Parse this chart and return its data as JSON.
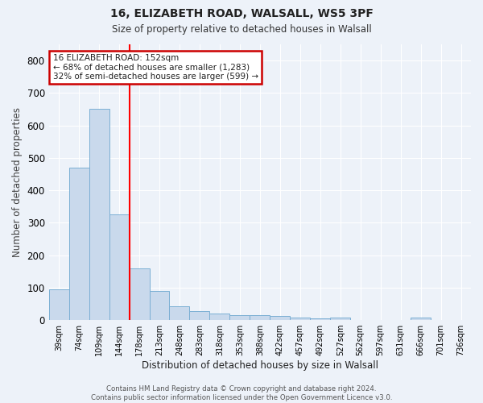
{
  "title1": "16, ELIZABETH ROAD, WALSALL, WS5 3PF",
  "title2": "Size of property relative to detached houses in Walsall",
  "xlabel": "Distribution of detached houses by size in Walsall",
  "ylabel": "Number of detached properties",
  "bar_labels": [
    "39sqm",
    "74sqm",
    "109sqm",
    "144sqm",
    "178sqm",
    "213sqm",
    "248sqm",
    "283sqm",
    "318sqm",
    "353sqm",
    "388sqm",
    "422sqm",
    "457sqm",
    "492sqm",
    "527sqm",
    "562sqm",
    "597sqm",
    "631sqm",
    "666sqm",
    "701sqm",
    "736sqm"
  ],
  "bar_values": [
    95,
    470,
    650,
    325,
    158,
    90,
    42,
    28,
    20,
    15,
    15,
    12,
    8,
    5,
    8,
    0,
    0,
    0,
    8,
    0,
    0
  ],
  "bar_color": "#c9d9ec",
  "bar_edgecolor": "#7bafd4",
  "background_color": "#edf2f9",
  "grid_color": "#ffffff",
  "red_line_x": 3.5,
  "annotation_text": "16 ELIZABETH ROAD: 152sqm\n← 68% of detached houses are smaller (1,283)\n32% of semi-detached houses are larger (599) →",
  "annotation_box_color": "#ffffff",
  "annotation_box_edgecolor": "#cc0000",
  "footer_text": "Contains HM Land Registry data © Crown copyright and database right 2024.\nContains public sector information licensed under the Open Government Licence v3.0.",
  "ylim": [
    0,
    850
  ],
  "yticks": [
    0,
    100,
    200,
    300,
    400,
    500,
    600,
    700,
    800
  ]
}
